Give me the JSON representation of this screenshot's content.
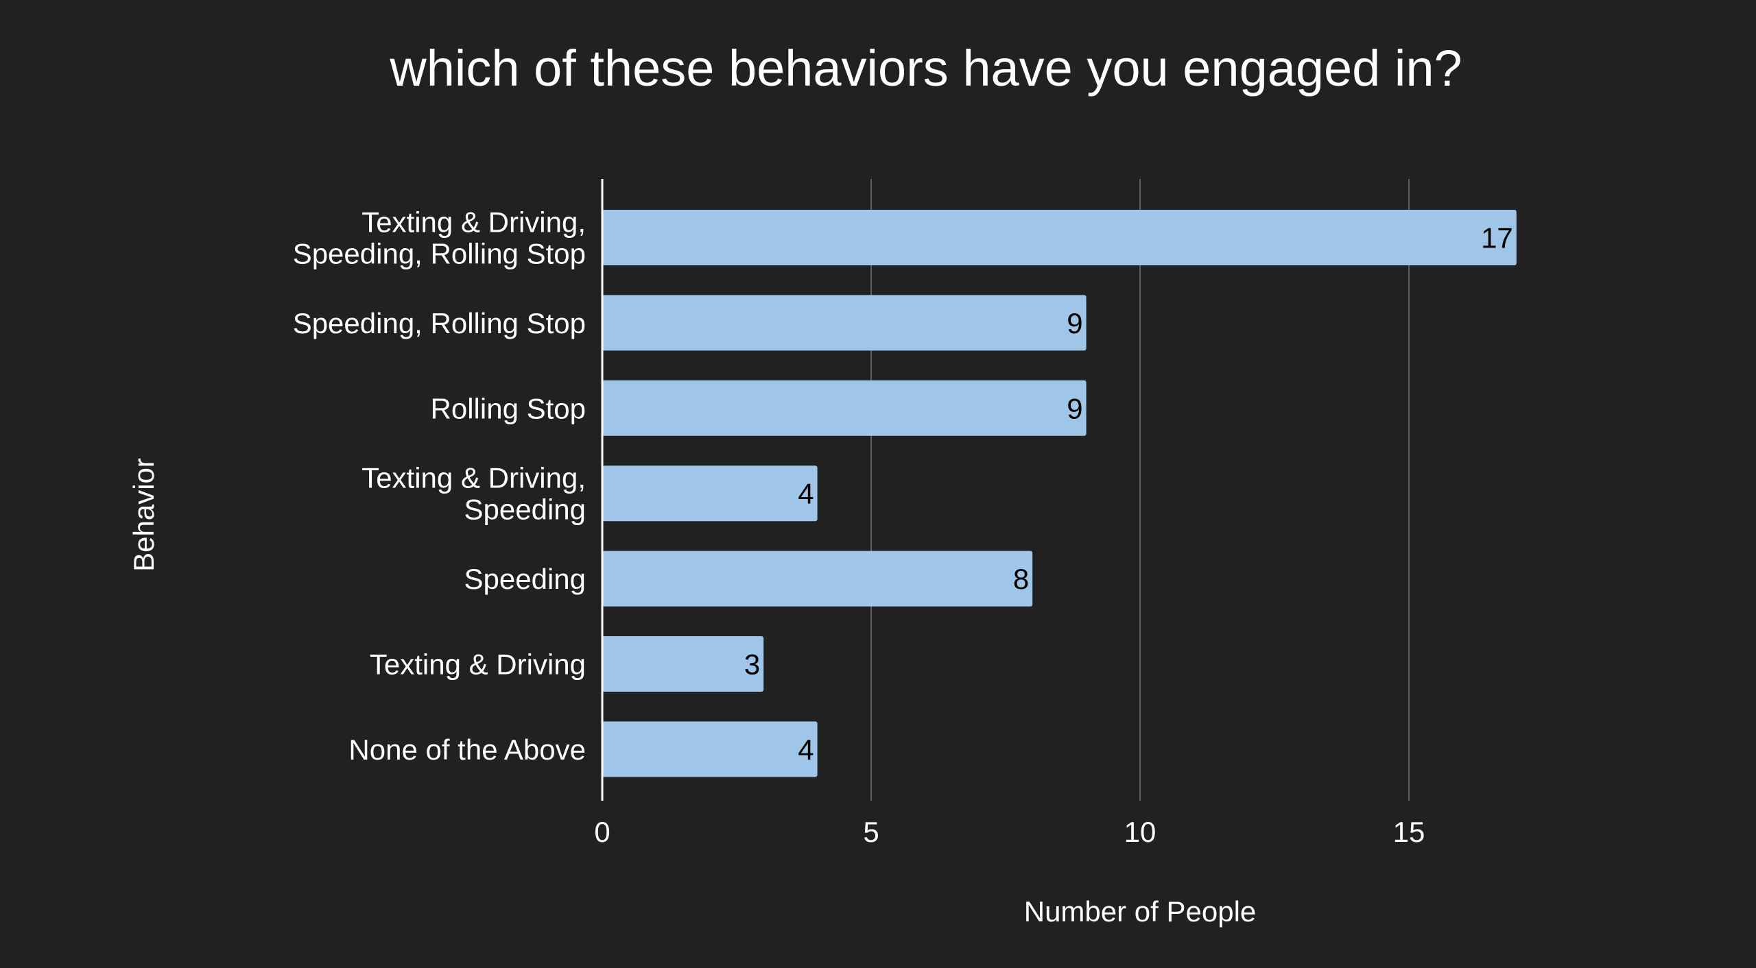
{
  "chart_data": {
    "type": "bar",
    "orientation": "horizontal",
    "title": "which of these behaviors have you engaged in?",
    "xlabel": "Number of People",
    "ylabel": "Behavior",
    "categories": [
      [
        "Texting & Driving,",
        "Speeding, Rolling Stop"
      ],
      [
        "Speeding, Rolling Stop"
      ],
      [
        "Rolling Stop"
      ],
      [
        "Texting & Driving,",
        "Speeding"
      ],
      [
        "Speeding"
      ],
      [
        "Texting & Driving"
      ],
      [
        "None of the Above"
      ]
    ],
    "values": [
      17,
      9,
      9,
      4,
      8,
      3,
      4
    ],
    "xlim": [
      0,
      19
    ],
    "xticks": [
      0,
      5,
      10,
      15
    ],
    "grid": true,
    "data_labels": true,
    "colors": {
      "background": "#212121",
      "bar": "#9fc5e8",
      "grid": "#5f5f5f",
      "text": "#ffffff",
      "label": "#000000"
    }
  }
}
